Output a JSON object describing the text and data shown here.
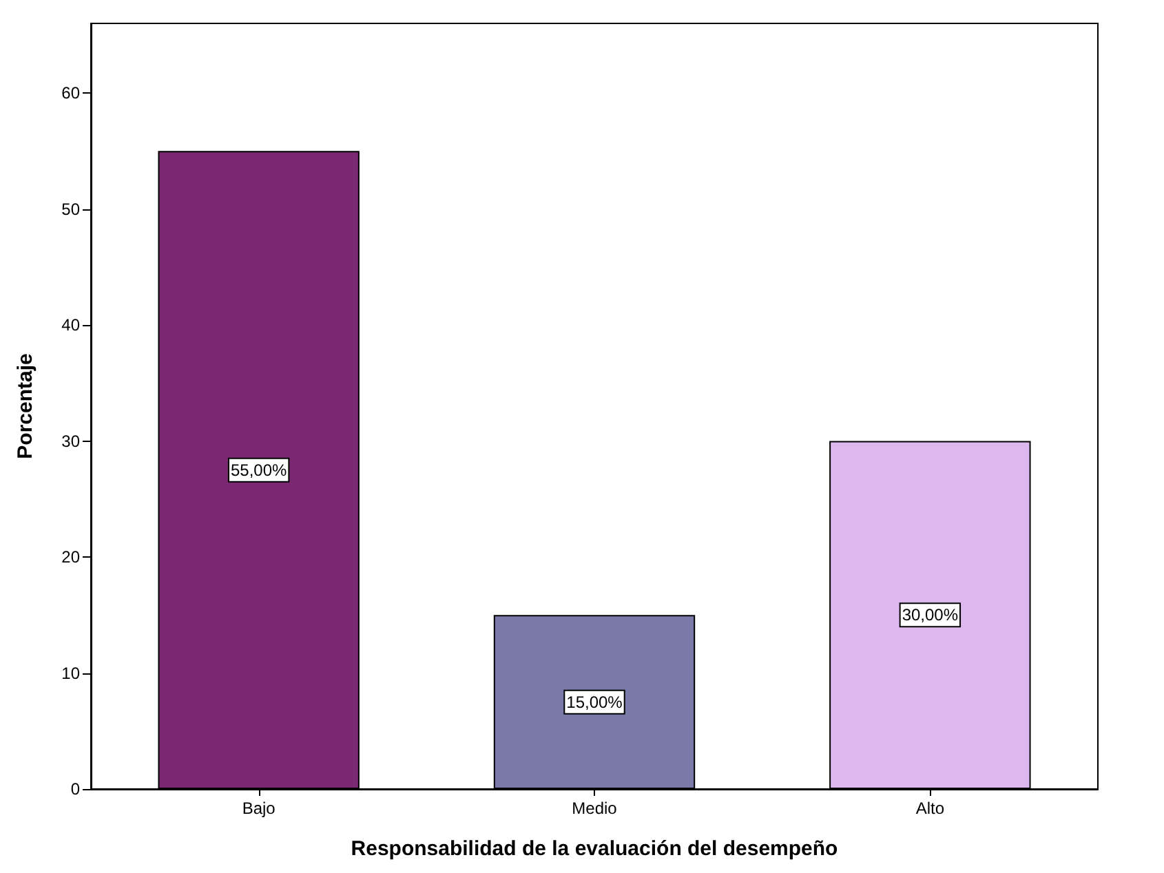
{
  "chart_data": {
    "type": "bar",
    "xlabel": "Responsabilidad de la evaluación del desempeño",
    "ylabel": "Porcentaje",
    "categories": [
      "Bajo",
      "Medio",
      "Alto"
    ],
    "values": [
      55,
      15,
      30
    ],
    "colors": [
      "#7b2872",
      "#7a7aa8",
      "#dcb8ee"
    ],
    "value_labels": [
      "55,00%",
      "15,00%",
      "30,00%"
    ],
    "ylim": [
      0,
      66
    ],
    "yticks": [
      0,
      10,
      20,
      30,
      40,
      50,
      60
    ],
    "grid": false
  }
}
